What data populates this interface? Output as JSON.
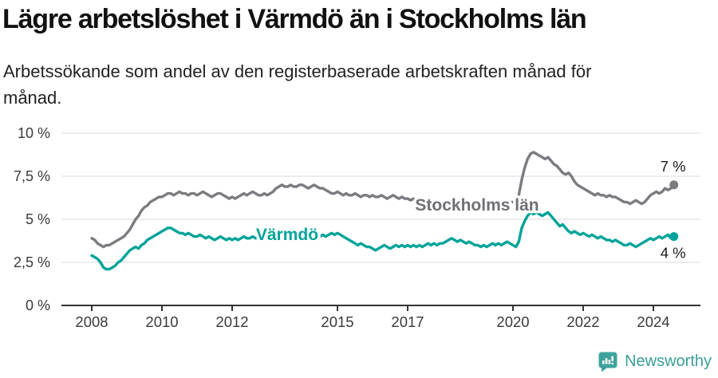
{
  "header": {
    "title": "Lägre arbetslöshet i Värmdö än i Stockholms län",
    "subtitle": "Arbetssökande som andel av den registerbaserade arbetskraften månad för månad.",
    "subtitle_lines": [
      "Arbetssökande som andel av den registerbaserade arbetskraften månad för",
      "månad."
    ]
  },
  "footer": {
    "brand": "Newsworthy",
    "logo_icon": "bar-chart-exclamation-bubble-icon"
  },
  "colors": {
    "varmdo": "#00A39A",
    "stockholm": "#7B7B80",
    "stockholm_label": "#6F6F74",
    "grid": "#DBDBDB",
    "axis": "#333333",
    "axis_text": "#3A3A3A",
    "value_label": "#1A1A1A",
    "brand_icon": "#3FA39D",
    "brand_text": "#3B9E99"
  },
  "chart_data": {
    "type": "line",
    "title": "Lägre arbetslöshet i Värmdö än i Stockholms län",
    "subtitle": "Arbetssökande som andel av den registerbaserade arbetskraften månad för månad.",
    "grid": true,
    "legend_position": "inline-labels",
    "x_axis": {
      "start_year": 2008,
      "frequency": "monthly",
      "end_label_month": "2024-08",
      "tick_years": [
        2008,
        2010,
        2012,
        2015,
        2017,
        2020,
        2022,
        2024
      ]
    },
    "y_axis": {
      "ylim": [
        0,
        10
      ],
      "ticks": [
        0,
        2.5,
        5,
        7.5,
        10
      ],
      "tick_labels": [
        "0 %",
        "2,5 %",
        "5 %",
        "7,5 %",
        "10 %"
      ]
    },
    "series": [
      {
        "name": "Stockholms län",
        "color": "#7B7B80",
        "label_color": "#6F6F74",
        "end_label": "7 %",
        "values": [
          3.9,
          3.8,
          3.6,
          3.5,
          3.4,
          3.5,
          3.5,
          3.6,
          3.7,
          3.8,
          3.9,
          4.0,
          4.2,
          4.4,
          4.7,
          5.0,
          5.2,
          5.5,
          5.7,
          5.8,
          6.0,
          6.1,
          6.2,
          6.3,
          6.3,
          6.4,
          6.5,
          6.5,
          6.4,
          6.5,
          6.6,
          6.5,
          6.5,
          6.4,
          6.5,
          6.5,
          6.4,
          6.5,
          6.6,
          6.5,
          6.4,
          6.3,
          6.4,
          6.5,
          6.5,
          6.4,
          6.3,
          6.2,
          6.3,
          6.2,
          6.3,
          6.4,
          6.5,
          6.4,
          6.5,
          6.6,
          6.5,
          6.4,
          6.4,
          6.5,
          6.4,
          6.5,
          6.6,
          6.8,
          6.9,
          7.0,
          6.9,
          6.9,
          7.0,
          6.9,
          6.9,
          7.0,
          7.0,
          6.9,
          6.8,
          6.9,
          7.0,
          6.9,
          6.8,
          6.8,
          6.7,
          6.6,
          6.5,
          6.5,
          6.6,
          6.5,
          6.4,
          6.5,
          6.4,
          6.4,
          6.5,
          6.4,
          6.3,
          6.4,
          6.4,
          6.3,
          6.4,
          6.3,
          6.3,
          6.4,
          6.3,
          6.2,
          6.3,
          6.4,
          6.3,
          6.2,
          6.3,
          6.2,
          6.2,
          6.1,
          6.2,
          6.1,
          6.1,
          6.0,
          6.1,
          6.2,
          6.1,
          6.0,
          6.1,
          6.0,
          6.0,
          5.9,
          6.0,
          5.9,
          5.9,
          6.0,
          6.1,
          6.0,
          5.9,
          5.9,
          6.0,
          5.9,
          5.9,
          6.0,
          5.9,
          5.9,
          6.0,
          6.0,
          6.1,
          6.0,
          6.0,
          6.1,
          6.0,
          6.0,
          6.0,
          6.0,
          6.4,
          7.3,
          8.0,
          8.5,
          8.8,
          8.9,
          8.8,
          8.7,
          8.6,
          8.5,
          8.6,
          8.4,
          8.2,
          8.1,
          7.9,
          7.7,
          7.6,
          7.7,
          7.5,
          7.2,
          7.0,
          6.9,
          6.8,
          6.7,
          6.6,
          6.5,
          6.4,
          6.5,
          6.4,
          6.4,
          6.3,
          6.4,
          6.3,
          6.3,
          6.2,
          6.1,
          6.0,
          6.0,
          5.9,
          6.0,
          6.1,
          6.0,
          5.9,
          6.0,
          6.2,
          6.4,
          6.5,
          6.6,
          6.5,
          6.6,
          6.8,
          6.7,
          6.8,
          7.0
        ]
      },
      {
        "name": "Värmdö",
        "color": "#00A39A",
        "label_color": "#00A39A",
        "end_label": "4 %",
        "values": [
          2.9,
          2.8,
          2.7,
          2.5,
          2.2,
          2.1,
          2.1,
          2.2,
          2.3,
          2.5,
          2.6,
          2.8,
          3.0,
          3.2,
          3.3,
          3.4,
          3.3,
          3.5,
          3.6,
          3.8,
          3.9,
          4.0,
          4.1,
          4.2,
          4.3,
          4.4,
          4.5,
          4.5,
          4.4,
          4.3,
          4.2,
          4.2,
          4.1,
          4.2,
          4.1,
          4.0,
          4.0,
          4.1,
          4.0,
          3.9,
          4.0,
          3.9,
          3.8,
          3.9,
          4.0,
          3.9,
          3.8,
          3.9,
          3.8,
          3.9,
          3.8,
          3.9,
          4.0,
          3.9,
          3.9,
          4.0,
          3.9,
          4.0,
          3.9,
          4.0,
          4.0,
          4.1,
          4.0,
          4.1,
          4.2,
          4.1,
          4.0,
          4.1,
          4.2,
          4.1,
          4.0,
          4.1,
          4.2,
          4.1,
          4.0,
          4.1,
          4.0,
          3.9,
          4.0,
          4.1,
          4.0,
          4.1,
          4.2,
          4.1,
          4.2,
          4.1,
          4.0,
          3.9,
          3.8,
          3.7,
          3.6,
          3.5,
          3.6,
          3.5,
          3.4,
          3.4,
          3.3,
          3.2,
          3.3,
          3.4,
          3.5,
          3.4,
          3.3,
          3.4,
          3.5,
          3.4,
          3.5,
          3.4,
          3.5,
          3.4,
          3.5,
          3.4,
          3.5,
          3.4,
          3.5,
          3.6,
          3.5,
          3.6,
          3.5,
          3.6,
          3.6,
          3.7,
          3.8,
          3.9,
          3.8,
          3.7,
          3.8,
          3.7,
          3.6,
          3.7,
          3.6,
          3.5,
          3.5,
          3.4,
          3.5,
          3.4,
          3.5,
          3.6,
          3.5,
          3.6,
          3.5,
          3.6,
          3.7,
          3.6,
          3.5,
          3.4,
          3.7,
          4.5,
          4.9,
          5.2,
          5.4,
          5.3,
          5.4,
          5.3,
          5.2,
          5.3,
          5.4,
          5.2,
          5.0,
          4.8,
          4.6,
          4.7,
          4.5,
          4.3,
          4.2,
          4.3,
          4.2,
          4.1,
          4.2,
          4.1,
          4.0,
          4.1,
          4.0,
          3.9,
          4.0,
          3.9,
          3.8,
          3.8,
          3.7,
          3.8,
          3.7,
          3.6,
          3.5,
          3.5,
          3.6,
          3.5,
          3.4,
          3.5,
          3.6,
          3.7,
          3.8,
          3.9,
          3.8,
          3.9,
          4.0,
          3.9,
          4.0,
          4.1,
          3.9,
          4.0
        ]
      }
    ]
  }
}
